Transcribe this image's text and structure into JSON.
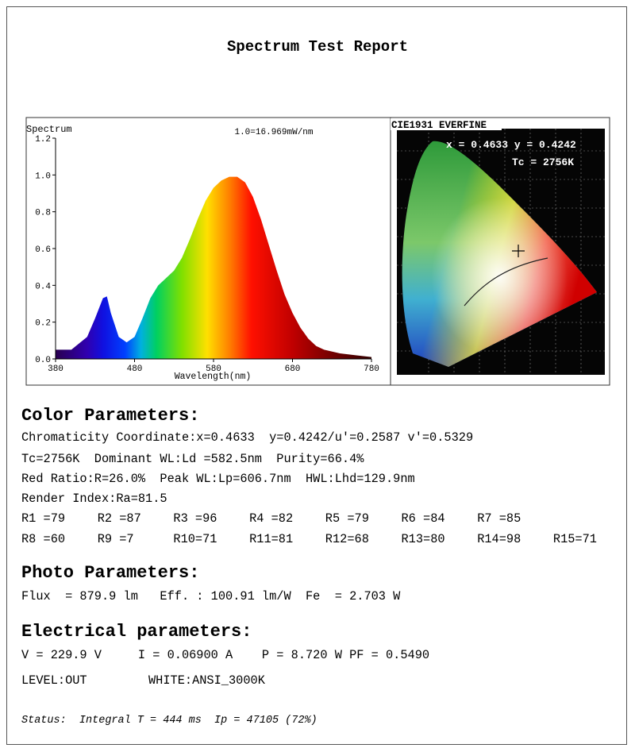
{
  "title": "Spectrum Test Report",
  "spectrum": {
    "label": "Spectrum",
    "scale_note": "1.0=16.969mW/nm",
    "xlabel": "Wavelength(nm)",
    "x": [
      380,
      400,
      420,
      430,
      440,
      445,
      450,
      460,
      470,
      480,
      490,
      500,
      510,
      520,
      530,
      540,
      550,
      560,
      570,
      580,
      590,
      600,
      610,
      620,
      630,
      640,
      650,
      660,
      670,
      680,
      690,
      700,
      710,
      720,
      740,
      760,
      780
    ],
    "values": [
      0.05,
      0.05,
      0.12,
      0.22,
      0.33,
      0.34,
      0.25,
      0.12,
      0.09,
      0.12,
      0.22,
      0.33,
      0.4,
      0.44,
      0.48,
      0.55,
      0.65,
      0.76,
      0.86,
      0.93,
      0.97,
      0.99,
      0.99,
      0.96,
      0.88,
      0.76,
      0.62,
      0.48,
      0.35,
      0.25,
      0.17,
      0.11,
      0.07,
      0.05,
      0.03,
      0.02,
      0.01
    ],
    "xlim": [
      380,
      780
    ],
    "ylim": [
      0,
      1.2
    ],
    "xticks": [
      380,
      480,
      580,
      680,
      780
    ],
    "yticks": [
      {
        "value": 0,
        "label": "0.0"
      },
      0.2,
      0.4,
      0.6,
      0.8,
      {
        "value": 1,
        "label": "1.0"
      },
      1.2
    ]
  },
  "cie": {
    "title": "CIE1931 EVERFINE",
    "coordinates": "x = 0.4633 y = 0.4242",
    "tc": "Tc = 2756K"
  },
  "color_parameters": {
    "heading": "Color Parameters:",
    "lines": [
      "Chromaticity Coordinate:x=0.4633  y=0.4242/u'=0.2587 v'=0.5329",
      "Tc=2756K  Dominant WL:Ld =582.5nm  Purity=66.4%",
      "Red Ratio:R=26.0%  Peak WL:Lp=606.7nm  HWL:Lhd=129.9nm",
      "Render Index:Ra=81.5"
    ],
    "render_table": [
      [
        "R1 =79",
        "R2 =87",
        "R3 =96",
        "R4 =82",
        "R5 =79",
        "R6 =84",
        "R7 =85"
      ],
      [
        "R8 =60",
        "R9 =7",
        "R10=71",
        "R11=81",
        "R12=68",
        "R13=80",
        "R14=98",
        "R15=71"
      ]
    ]
  },
  "photo_parameters": {
    "heading": "Photo Parameters:",
    "lines": [
      "Flux  = 879.9 lm   Eff. : 100.91 lm/W  Fe  = 2.703 W"
    ]
  },
  "electrical_parameters": {
    "heading": "Electrical parameters:",
    "lines": [
      "V = 229.9 V     I = 0.06900 A    P = 8.720 W PF = 0.5490"
    ],
    "level": "LEVEL:OUT",
    "white": "WHITE:ANSI_3000K"
  },
  "status": "Status:  Integral T = 444 ms  Ip = 47105 (72%)"
}
